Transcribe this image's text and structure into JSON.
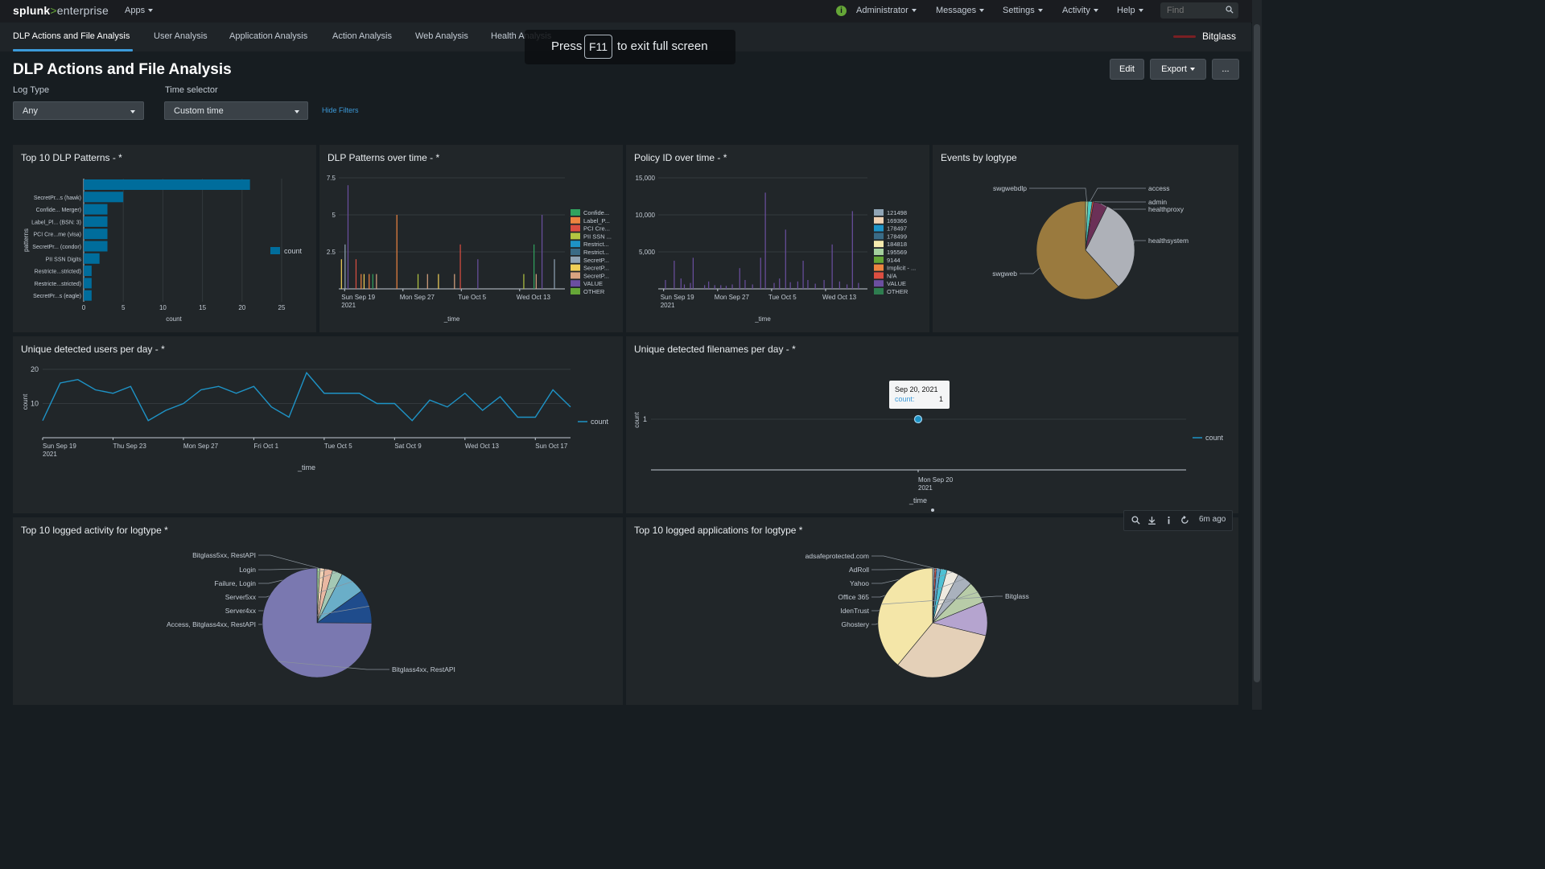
{
  "header": {
    "logo": {
      "splunk": "splunk",
      "gt": ">",
      "enterprise": "enterprise"
    },
    "menus": [
      "Apps",
      "Administrator",
      "Messages",
      "Settings",
      "Activity",
      "Help"
    ],
    "search_placeholder": "Find",
    "colors": {
      "accent": "#3c9ad9",
      "status_ok": "#65a637"
    }
  },
  "nav": {
    "tabs": [
      "DLP Actions and File Analysis",
      "User Analysis",
      "Application Analysis",
      "Action Analysis",
      "Web Analysis",
      "Health Analysis"
    ],
    "active_tab": 0,
    "brand": "Bitglass"
  },
  "fullscreen_notice": {
    "press": "Press",
    "key": "F11",
    "rest": "to exit full screen"
  },
  "page": {
    "title": "DLP Actions and File Analysis",
    "buttons": {
      "edit": "Edit",
      "export": "Export",
      "more": "..."
    },
    "filters": {
      "log_type": {
        "label": "Log Type",
        "value": "Any"
      },
      "time_selector": {
        "label": "Time selector",
        "value": "Custom time"
      },
      "hide_filters": "Hide Filters"
    }
  },
  "panels": {
    "top_dlp_patterns": {
      "title": "Top 10 DLP Patterns - *"
    },
    "dlp_over_time": {
      "title": "DLP Patterns over time - *"
    },
    "policy_over_time": {
      "title": "Policy ID over time - *"
    },
    "events_by_logtype": {
      "title": "Events by logtype"
    },
    "unique_users": {
      "title": "Unique detected users per day - *"
    },
    "unique_filenames": {
      "title": "Unique detected filenames per day - *"
    },
    "top_activity": {
      "title": "Top 10 logged activity for logtype *"
    },
    "top_apps": {
      "title": "Top 10 logged applications for logtype *"
    }
  },
  "tooltip": {
    "title": "Sep 20, 2021",
    "key": "count:",
    "value": "1"
  },
  "panel_toolbar": {
    "time_ago": "6m ago"
  },
  "chart_data": [
    {
      "id": "top_dlp_patterns",
      "type": "bar",
      "orientation": "horizontal",
      "categories": [
        "",
        "SecretPr...s (hawk)",
        "Confide... Merger)",
        "Label_Pl... (BSN: 3)",
        "PCI Cre...me (visa)",
        "SecretPr... (condor)",
        "PII SSN Digits",
        "Restricte...stricted)",
        "Restricte...stricted)",
        "SecretPr...s (eagle)"
      ],
      "values": [
        21,
        5,
        3,
        3,
        3,
        3,
        2,
        1,
        1,
        1
      ],
      "xlabel": "count",
      "ylabel": "patterns",
      "xticks": [
        "0",
        "5",
        "10",
        "15",
        "20",
        "25"
      ],
      "xlim": [
        0,
        25
      ],
      "legend": [
        "count"
      ],
      "color": "#006d9c"
    },
    {
      "id": "dlp_over_time",
      "type": "bar",
      "xlabel": "_time",
      "yticks": [
        "7.5",
        "5",
        "2.5"
      ],
      "ylim": [
        0,
        7.5
      ],
      "xticks": [
        "Sun Sep 19\n2021",
        "Mon Sep 27",
        "Tue Oct 5",
        "Wed Oct 13"
      ],
      "legend": [
        {
          "name": "Confide...",
          "color": "#31a35f"
        },
        {
          "name": "Label_P...",
          "color": "#ed8440"
        },
        {
          "name": "PCI Cre...",
          "color": "#dc4e41"
        },
        {
          "name": "PII SSN ...",
          "color": "#b3c541"
        },
        {
          "name": "Restrict...",
          "color": "#1e93c6"
        },
        {
          "name": "Restrict...",
          "color": "#3a6b86"
        },
        {
          "name": "SecretP...",
          "color": "#90a4b5"
        },
        {
          "name": "SecretP...",
          "color": "#f1d058"
        },
        {
          "name": "SecretP...",
          "color": "#d9a480"
        },
        {
          "name": "VALUE",
          "color": "#6b4fa0"
        },
        {
          "name": "OTHER",
          "color": "#65a637"
        }
      ],
      "bars": [
        {
          "day": 0.3,
          "v": 2.0,
          "c": "#f1d058"
        },
        {
          "day": 0.8,
          "v": 3.0,
          "c": "#90a4b5"
        },
        {
          "day": 1.2,
          "v": 7.0,
          "c": "#6b4fa0"
        },
        {
          "day": 2.3,
          "v": 2.0,
          "c": "#dc4e41"
        },
        {
          "day": 3.0,
          "v": 1.0,
          "c": "#ed8440"
        },
        {
          "day": 3.4,
          "v": 1.0,
          "c": "#f1d058"
        },
        {
          "day": 4.1,
          "v": 1.0,
          "c": "#ed8440"
        },
        {
          "day": 4.6,
          "v": 1.0,
          "c": "#31a35f"
        },
        {
          "day": 5.1,
          "v": 1.0,
          "c": "#d9a480"
        },
        {
          "day": 7.9,
          "v": 5.0,
          "c": "#ed8440"
        },
        {
          "day": 10.8,
          "v": 1.0,
          "c": "#b3c541"
        },
        {
          "day": 12.1,
          "v": 1.0,
          "c": "#d9a480"
        },
        {
          "day": 13.6,
          "v": 1.0,
          "c": "#f1d058"
        },
        {
          "day": 15.8,
          "v": 1.0,
          "c": "#d9a480"
        },
        {
          "day": 16.6,
          "v": 3.0,
          "c": "#dc4e41"
        },
        {
          "day": 19.0,
          "v": 2.0,
          "c": "#6b4fa0"
        },
        {
          "day": 25.3,
          "v": 1.0,
          "c": "#b3c541"
        },
        {
          "day": 26.7,
          "v": 3.0,
          "c": "#31a35f"
        },
        {
          "day": 27.0,
          "v": 1.0,
          "c": "#d9a480"
        },
        {
          "day": 27.8,
          "v": 5.0,
          "c": "#6b4fa0"
        },
        {
          "day": 29.5,
          "v": 2.0,
          "c": "#90a4b5"
        }
      ],
      "xlim": [
        0,
        31
      ]
    },
    {
      "id": "policy_over_time",
      "type": "bar",
      "xlabel": "_time",
      "yticks": [
        "15,000",
        "10,000",
        "5,000"
      ],
      "ylim": [
        0,
        15000
      ],
      "xticks": [
        "Sun Sep 19\n2021",
        "Mon Sep 27",
        "Tue Oct 5",
        "Wed Oct 13"
      ],
      "legend": [
        {
          "name": "121498",
          "color": "#90a4b5"
        },
        {
          "name": "169366",
          "color": "#f0d2b4"
        },
        {
          "name": "178497",
          "color": "#1e93c6"
        },
        {
          "name": "178499",
          "color": "#3a6b86"
        },
        {
          "name": "184818",
          "color": "#f6ebae"
        },
        {
          "name": "195569",
          "color": "#a4d09d"
        },
        {
          "name": "9144",
          "color": "#65a637"
        },
        {
          "name": "Implicit - ...",
          "color": "#ed8440"
        },
        {
          "name": "N/A",
          "color": "#dc4e41"
        },
        {
          "name": "VALUE",
          "color": "#6b4fa0"
        },
        {
          "name": "OTHER",
          "color": "#2e7d4f"
        }
      ],
      "bars": [
        {
          "day": 1.0,
          "v": 1200,
          "c": "#6b4fa0"
        },
        {
          "day": 2.3,
          "v": 3800,
          "c": "#6b4fa0"
        },
        {
          "day": 3.3,
          "v": 1400,
          "c": "#6b4fa0"
        },
        {
          "day": 3.8,
          "v": 600,
          "c": "#6b4fa0"
        },
        {
          "day": 4.7,
          "v": 800,
          "c": "#6b4fa0"
        },
        {
          "day": 5.1,
          "v": 4200,
          "c": "#6b4fa0"
        },
        {
          "day": 6.8,
          "v": 500,
          "c": "#6b4fa0"
        },
        {
          "day": 7.4,
          "v": 1000,
          "c": "#6b4fa0"
        },
        {
          "day": 8.3,
          "v": 500,
          "c": "#6b4fa0"
        },
        {
          "day": 9.2,
          "v": 500,
          "c": "#6b4fa0"
        },
        {
          "day": 10.0,
          "v": 400,
          "c": "#6b4fa0"
        },
        {
          "day": 10.9,
          "v": 600,
          "c": "#6b4fa0"
        },
        {
          "day": 12.0,
          "v": 2800,
          "c": "#6b4fa0"
        },
        {
          "day": 12.8,
          "v": 1200,
          "c": "#6b4fa0"
        },
        {
          "day": 13.9,
          "v": 600,
          "c": "#6b4fa0"
        },
        {
          "day": 15.1,
          "v": 4200,
          "c": "#6b4fa0"
        },
        {
          "day": 15.8,
          "v": 13000,
          "c": "#6b4fa0"
        },
        {
          "day": 17.1,
          "v": 800,
          "c": "#6b4fa0"
        },
        {
          "day": 17.9,
          "v": 1400,
          "c": "#6b4fa0"
        },
        {
          "day": 18.8,
          "v": 8000,
          "c": "#6b4fa0"
        },
        {
          "day": 19.5,
          "v": 900,
          "c": "#6b4fa0"
        },
        {
          "day": 20.6,
          "v": 1000,
          "c": "#6b4fa0"
        },
        {
          "day": 21.4,
          "v": 3800,
          "c": "#6b4fa0"
        },
        {
          "day": 22.1,
          "v": 1200,
          "c": "#6b4fa0"
        },
        {
          "day": 23.2,
          "v": 700,
          "c": "#6b4fa0"
        },
        {
          "day": 24.5,
          "v": 1200,
          "c": "#6b4fa0"
        },
        {
          "day": 25.7,
          "v": 6000,
          "c": "#6b4fa0"
        },
        {
          "day": 26.8,
          "v": 1000,
          "c": "#6b4fa0"
        },
        {
          "day": 27.9,
          "v": 600,
          "c": "#6b4fa0"
        },
        {
          "day": 28.7,
          "v": 10500,
          "c": "#6b4fa0"
        },
        {
          "day": 29.6,
          "v": 800,
          "c": "#6b4fa0"
        }
      ],
      "xlim": [
        0,
        31
      ]
    },
    {
      "id": "events_by_logtype",
      "type": "pie",
      "slices": [
        {
          "label": "swgwebdlp",
          "value": 0.8,
          "color": "#a4d09d"
        },
        {
          "label": "access",
          "value": 1.4,
          "color": "#4fcdc4"
        },
        {
          "label": "admin",
          "value": 0.5,
          "color": "#d84e41"
        },
        {
          "label": "healthproxy",
          "value": 4.6,
          "color": "#6b3057"
        },
        {
          "label": "healthsystem",
          "value": 31.0,
          "color": "#aeb1b8"
        },
        {
          "label": "swgweb",
          "value": 61.7,
          "color": "#9a7a3e"
        }
      ]
    },
    {
      "id": "unique_users",
      "type": "line",
      "xlabel": "_time",
      "ylabel": "count",
      "yticks": [
        "20",
        "10"
      ],
      "ylim": [
        0,
        20
      ],
      "xticks": [
        "Sun Sep 19\n2021",
        "Thu Sep 23",
        "Mon Sep 27",
        "Fri Oct 1",
        "Tue Oct 5",
        "Sat Oct 9",
        "Wed Oct 13",
        "Sun Oct 17"
      ],
      "series": [
        {
          "name": "count",
          "color": "#1e93c6",
          "values": [
            5,
            16,
            17,
            14,
            13,
            15,
            5,
            8,
            10,
            14,
            15,
            13,
            15,
            9,
            6,
            19,
            13,
            13,
            13,
            10,
            10,
            5,
            11,
            9,
            13,
            8,
            12,
            6,
            6,
            14,
            9
          ]
        }
      ],
      "legend": [
        "count"
      ]
    },
    {
      "id": "unique_filenames",
      "type": "scatter",
      "xlabel": "_time",
      "ylabel": "count",
      "yticks": [
        "1"
      ],
      "xticks": [
        "Mon Sep 20\n2021"
      ],
      "points": [
        {
          "x": "Sep 20, 2021",
          "y": 1
        }
      ],
      "legend": [
        "count"
      ]
    },
    {
      "id": "top_activity",
      "type": "pie",
      "slices": [
        {
          "label": "Bitglass5xx, RestAPI",
          "value": 0.8,
          "color": "#a4d09d"
        },
        {
          "label": "Login",
          "value": 1.4,
          "color": "#f0d2b4"
        },
        {
          "label": "Failure, Login",
          "value": 2.4,
          "color": "#e9b8a2"
        },
        {
          "label": "Server5xx",
          "value": 3.0,
          "color": "#a4c8b4"
        },
        {
          "label": "Server4xx",
          "value": 7.5,
          "color": "#6aaec8"
        },
        {
          "label": "Access, Bitglass4xx, RestAPI",
          "value": 10.0,
          "color": "#1f4c8c"
        },
        {
          "label": "Bitglass4xx, RestAPI",
          "value": 74.9,
          "color": "#7a78b0"
        }
      ]
    },
    {
      "id": "top_apps",
      "type": "pie",
      "slices": [
        {
          "label": "adsafeprotected.com",
          "value": 0.6,
          "color": "#90a4b5"
        },
        {
          "label": "",
          "value": 0.5,
          "color": "#d84e41"
        },
        {
          "label": "AdRoll",
          "value": 1.2,
          "color": "#5fa0c7"
        },
        {
          "label": "Yahoo",
          "value": 2.0,
          "color": "#4ec1d4"
        },
        {
          "label": "Office 365",
          "value": 3.5,
          "color": "#eeeae0"
        },
        {
          "label": "IdenTrust",
          "value": 4.5,
          "color": "#a9b1bd"
        },
        {
          "label": "Ghostery",
          "value": 6.5,
          "color": "#b8cca8"
        },
        {
          "label": "",
          "value": 10.0,
          "color": "#b5a4cf"
        },
        {
          "label": "",
          "value": 32.2,
          "color": "#e4d0b8"
        },
        {
          "label": "Bitglass",
          "value": 39.0,
          "color": "#f4e6a8"
        }
      ]
    }
  ]
}
